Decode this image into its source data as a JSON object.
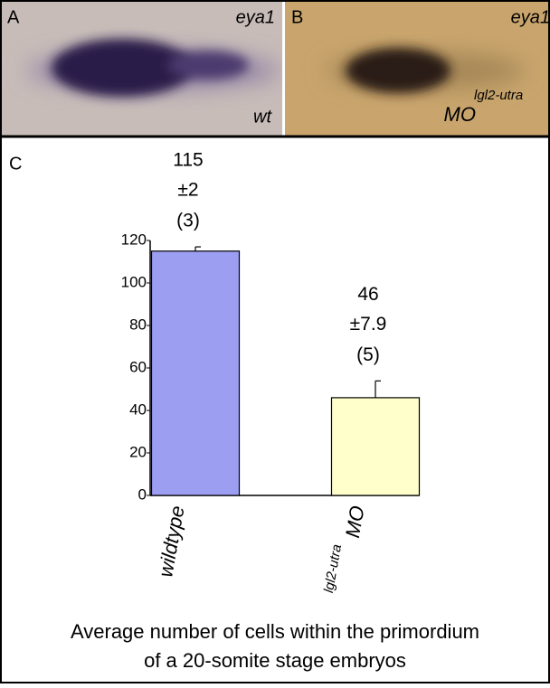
{
  "panels": [
    {
      "label": "A",
      "gene": "eya1",
      "condition": "wt"
    },
    {
      "label": "B",
      "gene": "eya1",
      "condition": "MO",
      "condition_superscript": "lgl2-utra"
    }
  ],
  "chart_data": {
    "type": "bar",
    "panel_label": "C",
    "categories": [
      {
        "label": "wildtype"
      },
      {
        "label": "MO",
        "superscript": "lgl2-utra"
      }
    ],
    "values": [
      115,
      46
    ],
    "value_labels": [
      "115",
      "46"
    ],
    "errors": [
      2,
      7.9
    ],
    "error_labels": [
      "±2",
      "±7.9"
    ],
    "n_labels": [
      "(3)",
      "(5)"
    ],
    "colors": [
      "#9c9ef2",
      "#ffffcc"
    ],
    "ylim": [
      0,
      120
    ],
    "yticks": [
      0,
      20,
      40,
      60,
      80,
      100,
      120
    ],
    "caption_lines": [
      "Average number of cells within the primordium",
      "of a 20-somite stage embryos"
    ]
  }
}
